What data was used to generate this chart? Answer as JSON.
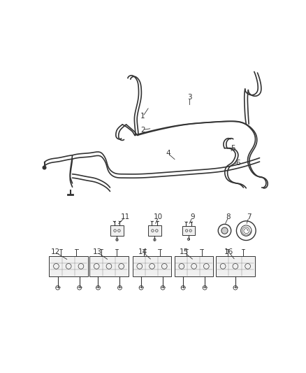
{
  "bg_color": "#ffffff",
  "line_color": "#333333",
  "label_color": "#333333",
  "figsize": [
    4.38,
    5.33
  ],
  "dpi": 100,
  "lw": 1.0,
  "font_size": 7.5
}
